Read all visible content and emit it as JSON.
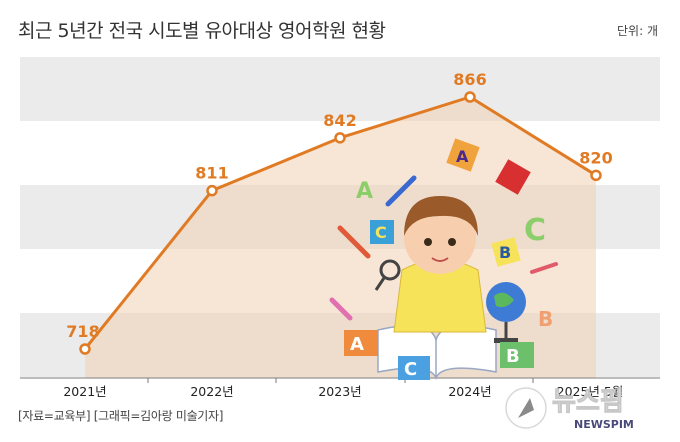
{
  "header": {
    "title": "최근 5년간 전국 시도별 유아대상 영어학원 현황",
    "unit": "단위: 개"
  },
  "footer": {
    "source": "[자료=교육부] [그래픽=김아랑 미술기자]"
  },
  "watermark": {
    "name": "뉴스핌",
    "sub": "NEWSPIM"
  },
  "colors": {
    "line": "#e07b24",
    "band": "#ebebeb",
    "area": "#f3dccb"
  },
  "chart_data": {
    "type": "line",
    "categories": [
      "2021년",
      "2022년",
      "2023년",
      "2024년",
      "2025년 5월"
    ],
    "values": [
      718,
      811,
      842,
      866,
      820
    ],
    "data_labels": [
      "718",
      "811",
      "842",
      "866",
      "820"
    ],
    "ylim": [
      700,
      880
    ],
    "legend": "none",
    "grid": "horizontal bands"
  }
}
